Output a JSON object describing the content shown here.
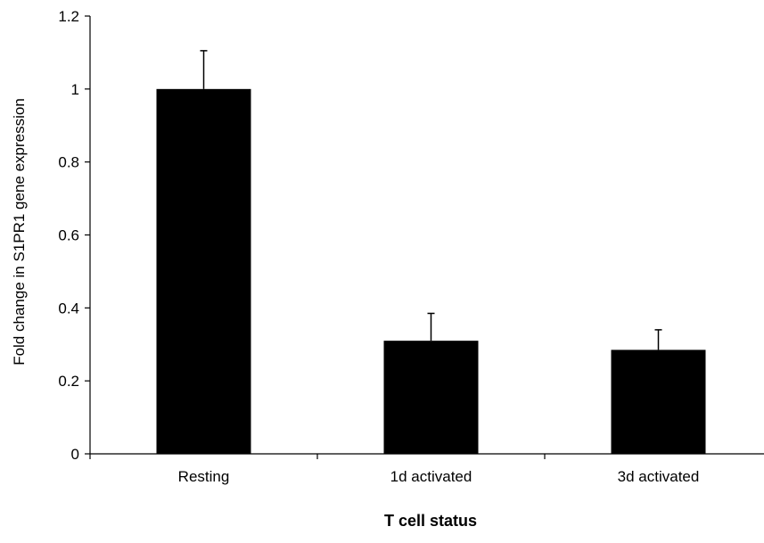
{
  "chart_data": {
    "type": "bar",
    "title": "",
    "xlabel": "T cell status",
    "ylabel": "Fold change in S1PR1 gene expression",
    "categories": [
      "Resting",
      "1d activated",
      "3d activated"
    ],
    "values": [
      1.0,
      0.31,
      0.285
    ],
    "error_upper": [
      0.105,
      0.075,
      0.055
    ],
    "ylim": [
      0,
      1.2
    ],
    "yticks": [
      0,
      0.2,
      0.4,
      0.6,
      0.8,
      1,
      1.2
    ],
    "ytick_labels": [
      "0",
      "0.2",
      "0.4",
      "0.6",
      "0.8",
      "1",
      "1.2"
    ],
    "bar_color": "#000000",
    "grid": false,
    "legend": "none"
  }
}
